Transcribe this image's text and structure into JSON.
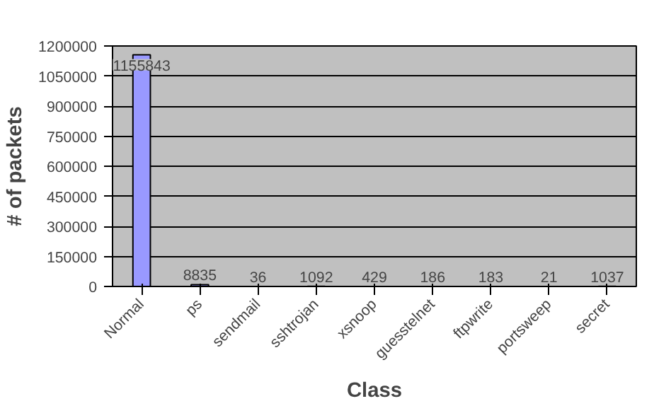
{
  "chart_data": {
    "type": "bar",
    "xlabel": "Class",
    "ylabel": "# of packets",
    "categories": [
      "Normal",
      "ps",
      "sendmail",
      "sshtrojan",
      "xsnoop",
      "guesstelnet",
      "ftpwrite",
      "portsweep",
      "secret"
    ],
    "values": [
      1155843,
      8835,
      36,
      1092,
      429,
      186,
      183,
      21,
      1037
    ],
    "color": "#9999ff",
    "ylim": [
      0,
      1200000
    ],
    "yticks": [
      0,
      150000,
      300000,
      450000,
      600000,
      750000,
      900000,
      1050000,
      1200000
    ],
    "grid": "y",
    "data_labels": true
  }
}
